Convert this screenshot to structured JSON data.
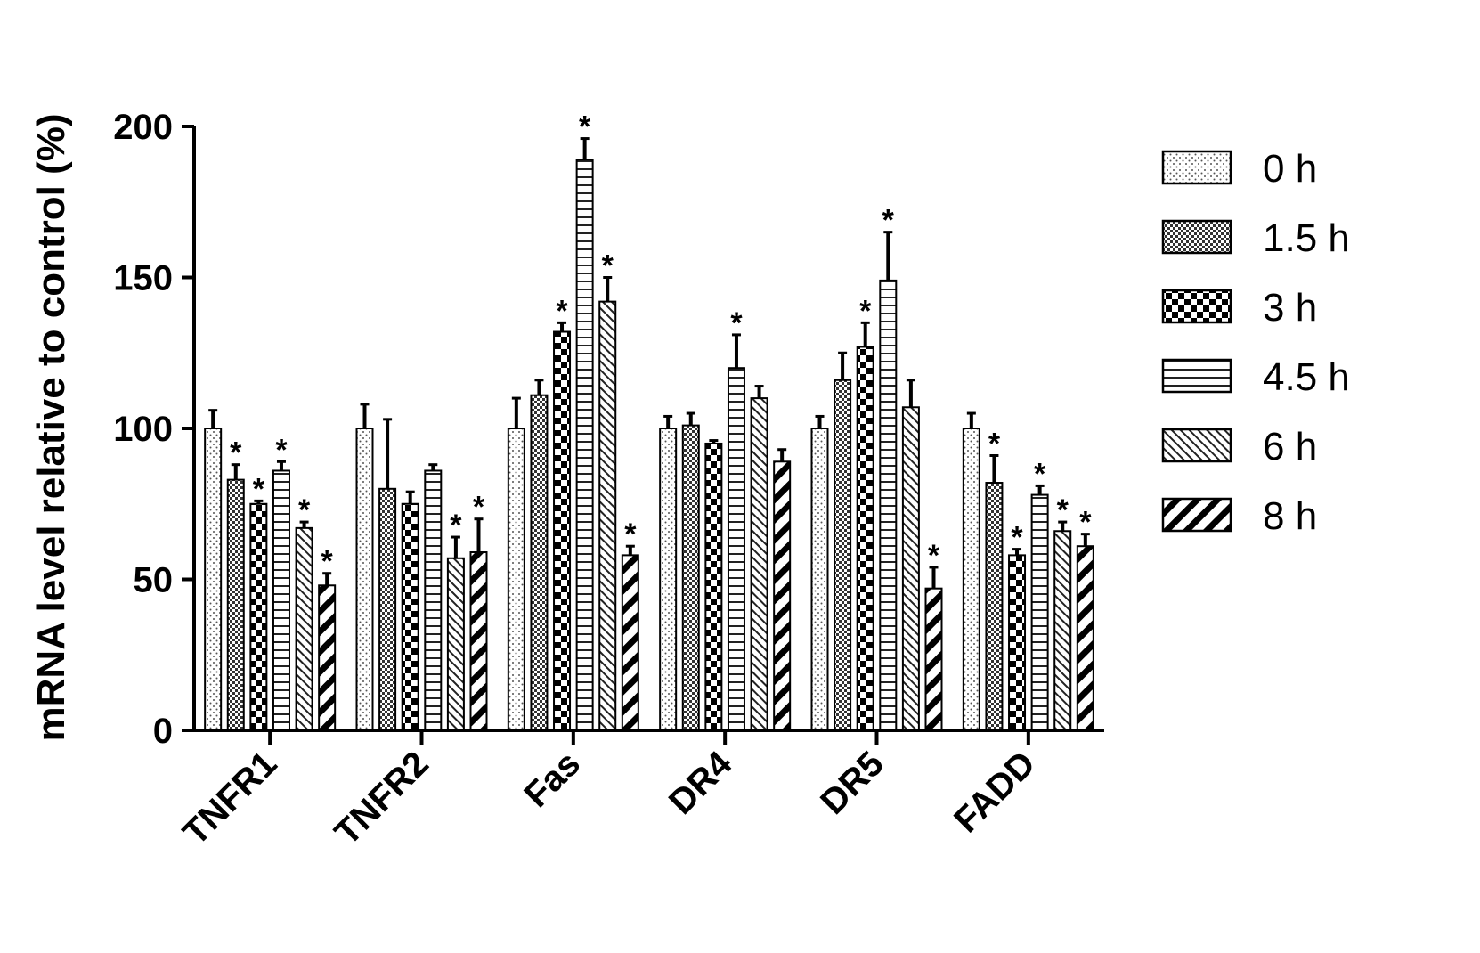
{
  "chart_data": {
    "type": "bar",
    "ylabel": "mRNA level relative to control (%)",
    "ylim": [
      0,
      200
    ],
    "yticks": [
      "0",
      "50",
      "100",
      "150",
      "200"
    ],
    "categories": [
      "TNFR1",
      "TNFR2",
      "Fas",
      "DR4",
      "DR5",
      "FADD"
    ],
    "legend_position": "right",
    "series": [
      {
        "name": "0 h",
        "pattern": "dots",
        "values": [
          100,
          100,
          100,
          100,
          100,
          100
        ],
        "errors": [
          6,
          8,
          10,
          4,
          4,
          5
        ],
        "significant": [
          false,
          false,
          false,
          false,
          false,
          false
        ]
      },
      {
        "name": "1.5 h",
        "pattern": "fine-check",
        "values": [
          83,
          80,
          111,
          101,
          116,
          82
        ],
        "errors": [
          5,
          23,
          5,
          4,
          9,
          9
        ],
        "significant": [
          true,
          false,
          false,
          false,
          false,
          true
        ]
      },
      {
        "name": "3 h",
        "pattern": "checker",
        "values": [
          75,
          75,
          132,
          95,
          127,
          58
        ],
        "errors": [
          1,
          4,
          3,
          1,
          8,
          2
        ],
        "significant": [
          true,
          false,
          true,
          false,
          true,
          true
        ]
      },
      {
        "name": "4.5 h",
        "pattern": "h-lines",
        "values": [
          86,
          86,
          189,
          120,
          149,
          78
        ],
        "errors": [
          3,
          2,
          7,
          11,
          16,
          3
        ],
        "significant": [
          true,
          false,
          true,
          true,
          true,
          true
        ]
      },
      {
        "name": "6 h",
        "pattern": "diag-fine",
        "values": [
          67,
          57,
          142,
          110,
          107,
          66
        ],
        "errors": [
          2,
          7,
          8,
          4,
          9,
          3
        ],
        "significant": [
          true,
          true,
          true,
          false,
          false,
          true
        ]
      },
      {
        "name": "8 h",
        "pattern": "diag-thick",
        "values": [
          48,
          59,
          58,
          89,
          47,
          61
        ],
        "errors": [
          4,
          11,
          3,
          4,
          7,
          4
        ],
        "significant": [
          true,
          true,
          true,
          false,
          true,
          true
        ]
      }
    ],
    "significance_marker": "*"
  }
}
